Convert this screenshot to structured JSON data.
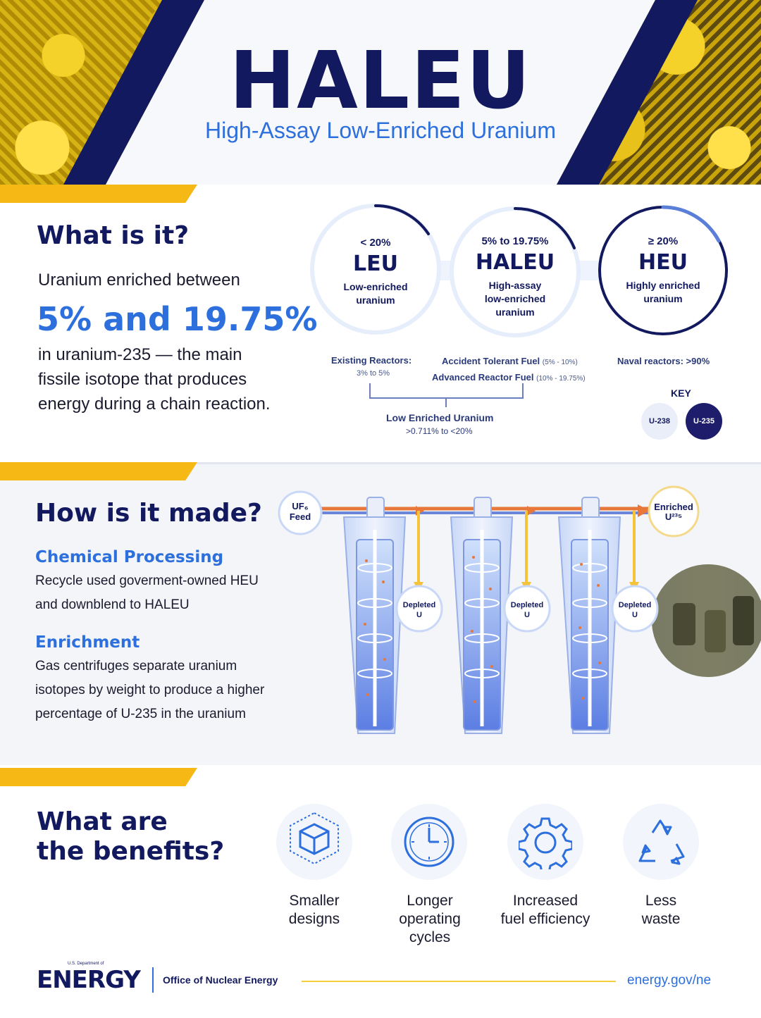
{
  "header": {
    "title": "HALEU",
    "subtitle": "High-Assay Low-Enriched Uranium"
  },
  "what_is_it": {
    "heading": "What is it?",
    "intro": "Uranium enriched between",
    "range": "5% and 19.75%",
    "body_lines": [
      "in uranium-235 — the main",
      "fissile isotope that produces",
      "energy during a chain reaction."
    ],
    "circles": [
      {
        "range": "< 20%",
        "abbr": "LEU",
        "desc_lines": [
          "Low-enriched",
          "uranium"
        ]
      },
      {
        "range": "5% to 19.75%",
        "abbr": "HALEU",
        "desc_lines": [
          "High-assay",
          "low-enriched",
          "uranium"
        ]
      },
      {
        "range": "≥ 20%",
        "abbr": "HEU",
        "desc_lines": [
          "Highly enriched",
          "uranium"
        ]
      }
    ],
    "uses": {
      "existing_label": "Existing Reactors:",
      "existing_range": "3% to 5%",
      "atf_label": "Accident Tolerant Fuel",
      "atf_range": "(5% - 10%)",
      "arf_label": "Advanced Reactor Fuel",
      "arf_range": "(10% - 19.75%)",
      "naval": "Naval reactors: >90%"
    },
    "leu_bracket": {
      "label": "Low Enriched Uranium",
      "range": ">0.711% to <20%"
    },
    "key": {
      "title": "KEY",
      "u238": "U-238",
      "u235": "U-235"
    }
  },
  "how_made": {
    "heading": "How is it made?",
    "methods": [
      {
        "title": "Chemical Processing",
        "lines": [
          "Recycle used goverment-owned HEU",
          "and downblend to HALEU"
        ]
      },
      {
        "title": "Enrichment",
        "lines": [
          "Gas centrifuges separate uranium",
          "isotopes by weight to produce a higher",
          "percentage of U-235 in the uranium"
        ]
      }
    ],
    "diagram": {
      "feed_line1": "UF₆",
      "feed_line2": "Feed",
      "enriched_line1": "Enriched",
      "enriched_line2": "U²³⁵",
      "depleted_line1": "Depleted",
      "depleted_line2": "U"
    }
  },
  "benefits": {
    "heading_line1": "What are",
    "heading_line2": "the benefits?",
    "items": [
      {
        "icon": "cube-icon",
        "lines": [
          "Smaller",
          "designs"
        ]
      },
      {
        "icon": "clock-icon",
        "lines": [
          "Longer",
          "operating",
          "cycles"
        ]
      },
      {
        "icon": "gear-icon",
        "lines": [
          "Increased",
          "fuel efficiency"
        ]
      },
      {
        "icon": "recycle-icon",
        "lines": [
          "Less",
          "waste"
        ]
      }
    ]
  },
  "footer": {
    "logo": "ENERGY",
    "logo_tiny": "U.S. Department of",
    "office": "Office of Nuclear Energy",
    "url": "energy.gov/ne"
  },
  "colors": {
    "navy": "#12195e",
    "blue": "#2d6fdc",
    "gold": "#f5b814",
    "arrow_orange": "#e8773a",
    "arrow_yellow": "#f5c33a"
  }
}
